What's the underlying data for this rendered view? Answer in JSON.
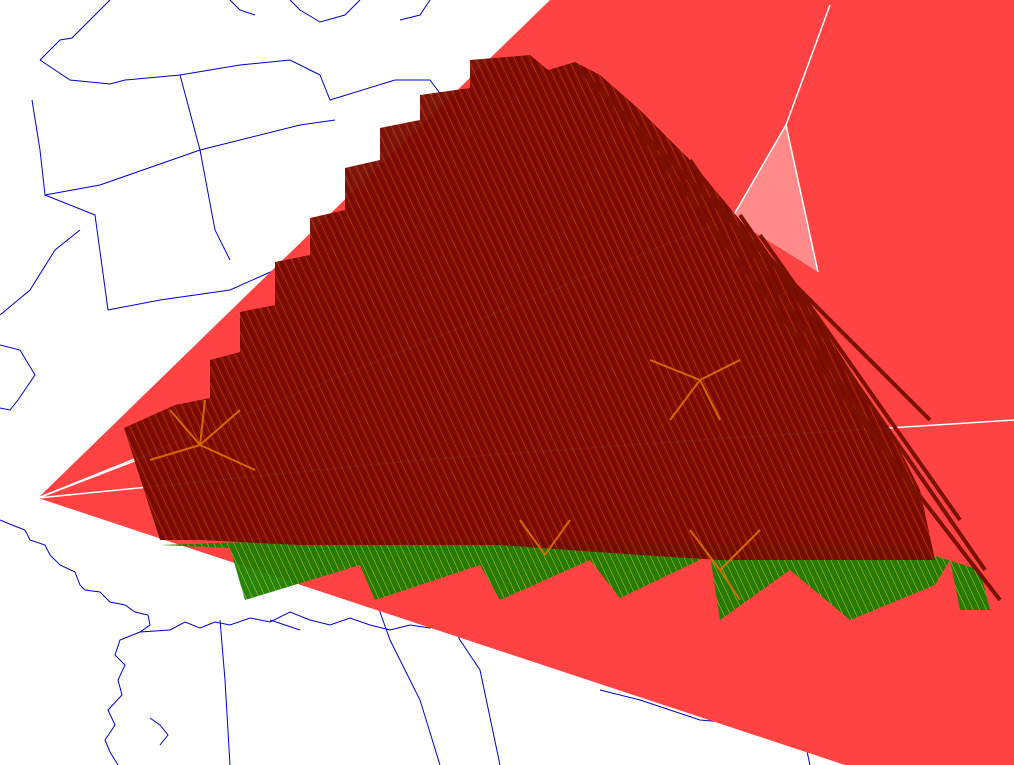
{
  "map": {
    "type": "3d-flight-track-visualization",
    "colors": {
      "background": "#ffffff",
      "boundary_lines": "#0000cc",
      "red_wedge": "#ff4343",
      "pale_triangle": "#ff8080",
      "white_lines": "#ffffff",
      "track_dark": "#7a0000",
      "track_orange": "#e06000",
      "track_green": "#1a8a00",
      "track_yellow": "#d8e000"
    },
    "layers": [
      {
        "name": "state-boundaries",
        "kind": "lines",
        "color_key": "boundary_lines"
      },
      {
        "name": "coastline",
        "kind": "lines",
        "color_key": "boundary_lines"
      },
      {
        "name": "coverage-wedge",
        "kind": "polygon",
        "color_key": "red_wedge"
      },
      {
        "name": "flight-track-grid",
        "kind": "hatched-mesh",
        "color_key": "track_dark"
      },
      {
        "name": "flight-track-green-band",
        "kind": "hatched-mesh",
        "color_key": "track_green"
      }
    ]
  }
}
